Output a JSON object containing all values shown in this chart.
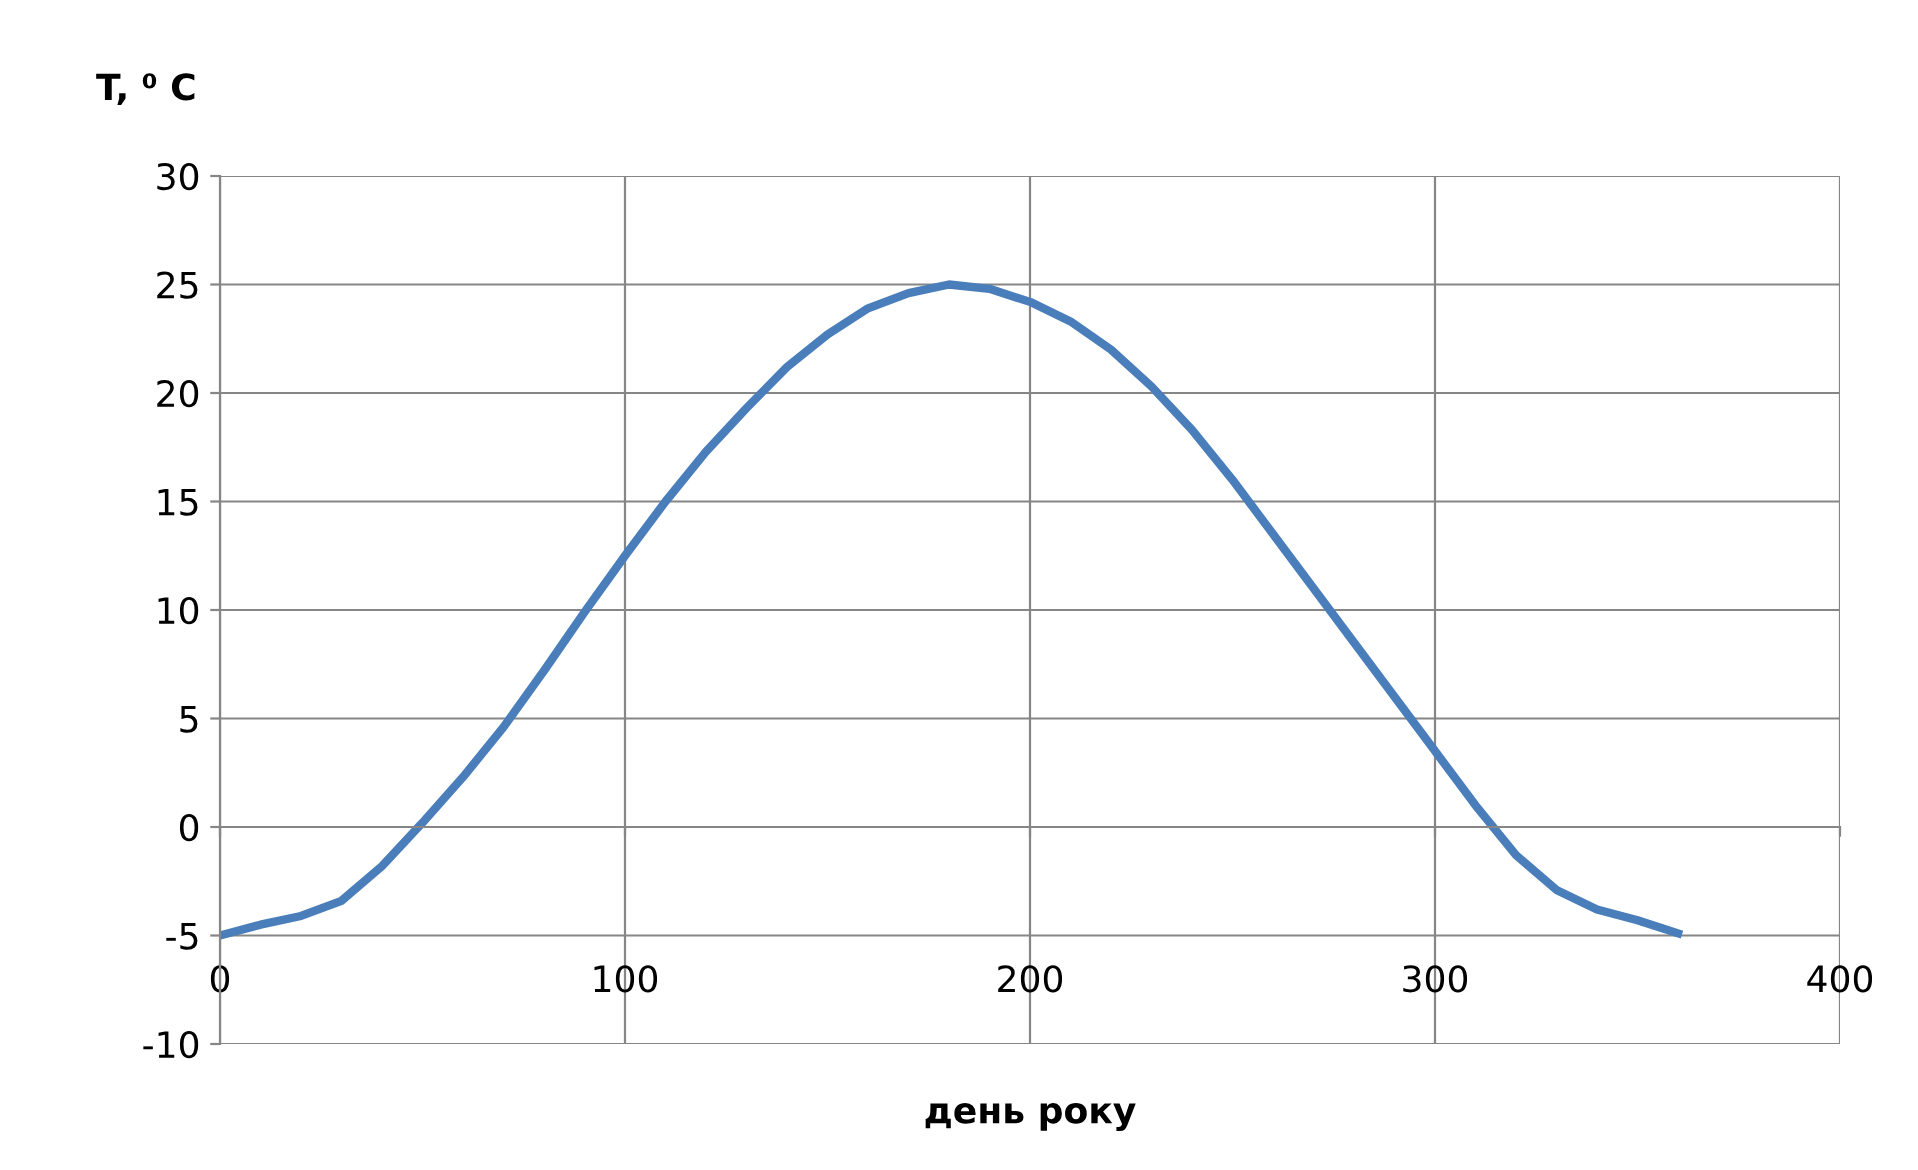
{
  "chart_data": {
    "type": "line",
    "ylabel": "T, ⁰ C",
    "xlabel": "день року",
    "xlim": [
      0,
      400
    ],
    "xticks": [
      0,
      100,
      200,
      300,
      400
    ],
    "ylim": [
      -10,
      30
    ],
    "yticks": [
      -10,
      -5,
      0,
      5,
      10,
      15,
      20,
      25,
      30
    ],
    "grid": true,
    "marker": "none",
    "line_style": "solid",
    "series": [
      {
        "color": "#4a7ebb",
        "x": [
          0,
          10,
          20,
          30,
          40,
          50,
          60,
          70,
          80,
          90,
          100,
          110,
          120,
          130,
          140,
          150,
          160,
          170,
          180,
          190,
          200,
          210,
          220,
          230,
          240,
          250,
          260,
          270,
          280,
          290,
          300,
          310,
          320,
          330,
          340,
          350,
          360
        ],
        "values": [
          -5,
          -4.5,
          -4.1,
          -3.4,
          -1.8,
          0.2,
          2.3,
          4.6,
          7.2,
          9.9,
          12.5,
          15.0,
          17.3,
          19.3,
          21.2,
          22.7,
          23.9,
          24.6,
          25.0,
          24.8,
          24.2,
          23.3,
          22.0,
          20.3,
          18.3,
          16.0,
          13.5,
          11.0,
          8.5,
          6.0,
          3.5,
          1.0,
          -1.3,
          -2.9,
          -3.8,
          -4.3,
          -4.9
        ]
      }
    ]
  }
}
